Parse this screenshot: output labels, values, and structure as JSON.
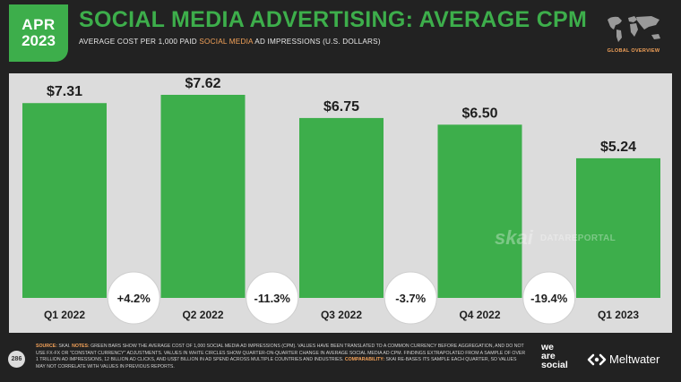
{
  "header": {
    "badge_month": "APR",
    "badge_year": "2023",
    "title": "SOCIAL MEDIA ADVERTISING: AVERAGE CPM",
    "subtitle_pre": "AVERAGE COST PER 1,000 PAID ",
    "subtitle_highlight": "SOCIAL MEDIA",
    "subtitle_post": " AD IMPRESSIONS (U.S. DOLLARS)",
    "map_label": "GLOBAL OVERVIEW"
  },
  "chart_data": {
    "type": "bar",
    "categories": [
      "Q1 2022",
      "Q2 2022",
      "Q3 2022",
      "Q4 2022",
      "Q1 2023"
    ],
    "values": [
      7.31,
      7.62,
      6.75,
      6.5,
      5.24
    ],
    "value_labels": [
      "$7.31",
      "$7.62",
      "$6.75",
      "$6.50",
      "$5.24"
    ],
    "changes": [
      "+4.2%",
      "-11.3%",
      "-3.7%",
      "-19.4%"
    ],
    "ylim": [
      0,
      7.62
    ],
    "bar_color": "#3dae4b"
  },
  "watermark": {
    "brand1": "skai",
    "brand2": "DATAREPORTAL"
  },
  "footer": {
    "page_number": "286",
    "source_label": "SOURCE:",
    "source_value": " SKAI. ",
    "notes_label": "NOTES:",
    "notes_text": " GREEN BARS SHOW THE AVERAGE COST OF 1,000 SOCIAL MEDIA AD IMPRESSIONS (CPM). VALUES HAVE BEEN TRANSLATED TO A COMMON CURRENCY BEFORE AGGREGATION, AND DO NOT USE FX-FX OR \"CONSTANT CURRENCY\" ADJUSTMENTS. VALUES IN WHITE CIRCLES SHOW QUARTER-ON-QUARTER CHANGE IN AVERAGE SOCIAL MEDIA AD CPM. FINDINGS EXTRAPOLATED FROM A SAMPLE OF OVER 1 TRILLION AD IMPRESSIONS, 12 BILLION AD CLICKS, AND US$7 BILLION IN AD SPEND ACROSS MULTIPLE COUNTRIES AND INDUSTRIES. ",
    "comparability_label": "COMPARABILITY:",
    "comparability_text": " SKAI RE-BASES ITS SAMPLE EACH QUARTER, SO VALUES MAY NOT CORRELATE WITH VALUES IN PREVIOUS REPORTS.",
    "logo_we": "we",
    "logo_are": "are",
    "logo_social": "social",
    "logo_meltwater": "Meltwater"
  }
}
